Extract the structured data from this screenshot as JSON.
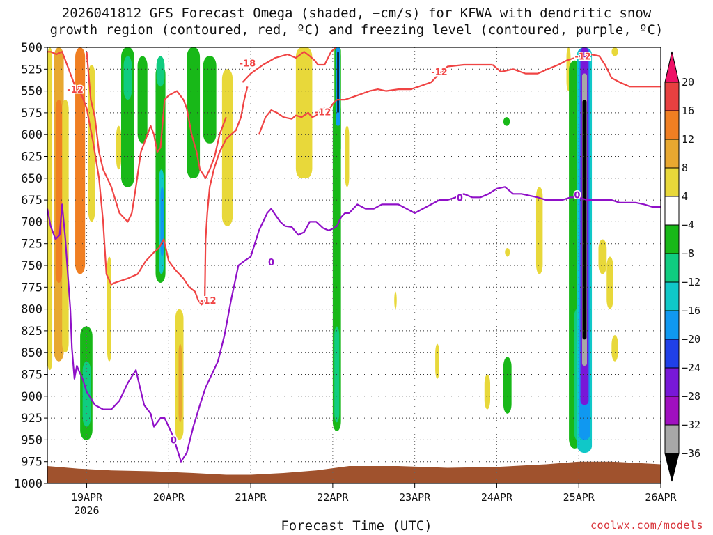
{
  "chart_data": {
    "type": "heatmap",
    "title_line1": "2026041812 GFS Forecast Omega (shaded, −cm/s) for KFWA with dendritic snow",
    "title_line2": "growth region (contoured, red, ºC) and freezing level (contoured, purple, ºC)",
    "xlabel": "Forecast Time (UTC)",
    "credit": "coolwx.com/models",
    "x_ticks": [
      {
        "label": "19APR",
        "sub": "2026",
        "day": 19
      },
      {
        "label": "20APR",
        "sub": "",
        "day": 20
      },
      {
        "label": "21APR",
        "sub": "",
        "day": 21
      },
      {
        "label": "22APR",
        "sub": "",
        "day": 22
      },
      {
        "label": "23APR",
        "sub": "",
        "day": 23
      },
      {
        "label": "24APR",
        "sub": "",
        "day": 24
      },
      {
        "label": "25APR",
        "sub": "",
        "day": 25
      },
      {
        "label": "26APR",
        "sub": "",
        "day": 26
      }
    ],
    "xlim_days": [
      18.52,
      26.0
    ],
    "y_ticks": [
      500,
      525,
      550,
      575,
      600,
      625,
      650,
      675,
      700,
      725,
      750,
      775,
      800,
      825,
      850,
      875,
      900,
      925,
      950,
      975,
      1000
    ],
    "ylim_hpa": [
      500,
      1000
    ],
    "colorbar": {
      "labels": [
        "20",
        "16",
        "12",
        "8",
        "4",
        "−4",
        "−8",
        "−12",
        "−16",
        "−20",
        "−24",
        "−28",
        "−32",
        "−36"
      ],
      "colors": [
        "#ee1166",
        "#e84040",
        "#f07f22",
        "#e8a830",
        "#e8d83a",
        "#ffffff",
        "#18b818",
        "#10cc80",
        "#10c8c8",
        "#1098f0",
        "#2040e8",
        "#7818d8",
        "#a010c0",
        "#a8a8a8",
        "#000000"
      ]
    },
    "colors": {
      "c_pos4": "#e8d83a",
      "c_pos8": "#e8a830",
      "c_pos12": "#f07f22",
      "c_m4": "#18b818",
      "c_m8": "#10cc80",
      "c_m12": "#10c8c8",
      "c_m16": "#1098f0",
      "c_m20": "#2040e8",
      "c_m28": "#7818d8",
      "c_m32": "#a010c0",
      "c_m36": "#a8a8a8",
      "c_black": "#000000",
      "ground": "#a0522d",
      "dgz_line": "#f04444",
      "fz_line": "#9010c8"
    },
    "omega_blobs": [
      {
        "c": "c_pos4",
        "t0": 18.52,
        "t1": 18.58,
        "p0": 500,
        "p1": 870
      },
      {
        "c": "c_pos8",
        "t0": 18.6,
        "t1": 18.72,
        "p0": 500,
        "p1": 860
      },
      {
        "c": "c_pos4",
        "t0": 18.7,
        "t1": 18.78,
        "p0": 560,
        "p1": 850
      },
      {
        "c": "c_pos12",
        "t0": 18.62,
        "t1": 18.7,
        "p0": 560,
        "p1": 770
      },
      {
        "c": "c_pos12",
        "t0": 18.86,
        "t1": 18.98,
        "p0": 500,
        "p1": 760
      },
      {
        "c": "c_pos4",
        "t0": 19.02,
        "t1": 19.1,
        "p0": 520,
        "p1": 700
      },
      {
        "c": "c_pos4",
        "t0": 19.25,
        "t1": 19.3,
        "p0": 740,
        "p1": 860
      },
      {
        "c": "c_m4",
        "t0": 18.92,
        "t1": 19.07,
        "p0": 820,
        "p1": 950
      },
      {
        "c": "c_m8",
        "t0": 18.95,
        "t1": 19.05,
        "p0": 860,
        "p1": 935
      },
      {
        "c": "c_m4",
        "t0": 19.42,
        "t1": 19.58,
        "p0": 500,
        "p1": 660
      },
      {
        "c": "c_m8",
        "t0": 19.45,
        "t1": 19.55,
        "p0": 510,
        "p1": 560
      },
      {
        "c": "c_pos4",
        "t0": 19.36,
        "t1": 19.42,
        "p0": 590,
        "p1": 640
      },
      {
        "c": "c_m4",
        "t0": 19.62,
        "t1": 19.74,
        "p0": 510,
        "p1": 610
      },
      {
        "c": "c_m4",
        "t0": 19.84,
        "t1": 19.96,
        "p0": 520,
        "p1": 770
      },
      {
        "c": "c_m8",
        "t0": 19.85,
        "t1": 19.95,
        "p0": 510,
        "p1": 545
      },
      {
        "c": "c_m12",
        "t0": 19.88,
        "t1": 19.94,
        "p0": 640,
        "p1": 760
      },
      {
        "c": "c_m16",
        "t0": 19.9,
        "t1": 19.94,
        "p0": 660,
        "p1": 740
      },
      {
        "c": "c_pos4",
        "t0": 20.08,
        "t1": 20.18,
        "p0": 800,
        "p1": 950
      },
      {
        "c": "c_pos8",
        "t0": 20.12,
        "t1": 20.16,
        "p0": 840,
        "p1": 930
      },
      {
        "c": "c_m4",
        "t0": 20.22,
        "t1": 20.38,
        "p0": 500,
        "p1": 650
      },
      {
        "c": "c_m4",
        "t0": 20.42,
        "t1": 20.58,
        "p0": 510,
        "p1": 610
      },
      {
        "c": "c_pos4",
        "t0": 20.65,
        "t1": 20.78,
        "p0": 525,
        "p1": 705
      },
      {
        "c": "c_pos4",
        "t0": 20.7,
        "t1": 20.74,
        "p0": 605,
        "p1": 650
      },
      {
        "c": "c_pos4",
        "t0": 21.55,
        "t1": 21.75,
        "p0": 500,
        "p1": 650
      },
      {
        "c": "c_m4",
        "t0": 22.0,
        "t1": 22.1,
        "p0": 560,
        "p1": 940
      },
      {
        "c": "c_m8",
        "t0": 22.02,
        "t1": 22.08,
        "p0": 820,
        "p1": 930
      },
      {
        "c": "c_m4",
        "t0": 22.06,
        "t1": 22.1,
        "p0": 500,
        "p1": 560
      },
      {
        "c": "c_pos4",
        "t0": 22.15,
        "t1": 22.2,
        "p0": 590,
        "p1": 660
      },
      {
        "c": "c_m4",
        "t0": 24.08,
        "t1": 24.16,
        "p0": 580,
        "p1": 590
      },
      {
        "c": "c_pos4",
        "t0": 24.1,
        "t1": 24.16,
        "p0": 730,
        "p1": 740
      },
      {
        "c": "c_m4",
        "t0": 24.08,
        "t1": 24.18,
        "p0": 855,
        "p1": 920
      },
      {
        "c": "c_pos4",
        "t0": 23.85,
        "t1": 23.92,
        "p0": 875,
        "p1": 915
      },
      {
        "c": "c_pos4",
        "t0": 23.25,
        "t1": 23.3,
        "p0": 840,
        "p1": 880
      },
      {
        "c": "c_pos4",
        "t0": 22.75,
        "t1": 22.78,
        "p0": 780,
        "p1": 800
      },
      {
        "c": "c_pos4",
        "t0": 24.48,
        "t1": 24.56,
        "p0": 660,
        "p1": 760
      },
      {
        "c": "c_pos4",
        "t0": 24.85,
        "t1": 24.9,
        "p0": 500,
        "p1": 550
      },
      {
        "c": "c_m4",
        "t0": 24.88,
        "t1": 25.02,
        "p0": 515,
        "p1": 960
      },
      {
        "c": "c_m8",
        "t0": 24.94,
        "t1": 25.02,
        "p0": 800,
        "p1": 950
      },
      {
        "c": "c_pos4",
        "t0": 25.24,
        "t1": 25.34,
        "p0": 720,
        "p1": 760
      },
      {
        "c": "c_pos4",
        "t0": 25.34,
        "t1": 25.42,
        "p0": 740,
        "p1": 800
      },
      {
        "c": "c_pos4",
        "t0": 25.4,
        "t1": 25.48,
        "p0": 830,
        "p1": 860
      },
      {
        "c": "c_pos4",
        "t0": 25.4,
        "t1": 25.48,
        "p0": 500,
        "p1": 510
      }
    ],
    "omega_bands": [
      {
        "c": "c_m4",
        "t0": 22.02,
        "t1": 22.1,
        "p0": 500,
        "p1": 620
      },
      {
        "c": "c_m16",
        "t0": 22.04,
        "t1": 22.09,
        "p0": 500,
        "p1": 590
      },
      {
        "c": "c_black",
        "t0": 22.055,
        "t1": 22.075,
        "p0": 505,
        "p1": 575
      },
      {
        "c": "c_m12",
        "t0": 24.98,
        "t1": 25.16,
        "p0": 500,
        "p1": 965
      },
      {
        "c": "c_m16",
        "t0": 25.0,
        "t1": 25.14,
        "p0": 500,
        "p1": 950
      },
      {
        "c": "c_m28",
        "t0": 25.02,
        "t1": 25.12,
        "p0": 500,
        "p1": 910
      },
      {
        "c": "c_m36",
        "t0": 25.04,
        "t1": 25.1,
        "p0": 530,
        "p1": 865
      },
      {
        "c": "c_black",
        "t0": 25.045,
        "t1": 25.095,
        "p0": 560,
        "p1": 835
      }
    ],
    "ground_profile": {
      "t": [
        18.52,
        18.9,
        19.3,
        19.8,
        20.3,
        20.7,
        21.0,
        21.4,
        21.8,
        22.2,
        22.8,
        23.4,
        24.0,
        24.6,
        25.0,
        25.4,
        26.0
      ],
      "hpa": [
        980,
        983,
        985,
        986,
        988,
        990,
        990,
        988,
        985,
        980,
        980,
        982,
        981,
        978,
        975,
        975,
        978
      ]
    },
    "contours": [
      {
        "kind": "dgz",
        "t": [
          18.52,
          18.56,
          18.63,
          18.7,
          18.76,
          18.86,
          18.94,
          19.0,
          19.08,
          19.15,
          19.2,
          19.24,
          19.3,
          19.34
        ],
        "hpa": [
          505,
          505,
          508,
          505,
          520,
          545,
          555,
          570,
          610,
          650,
          700,
          760,
          772,
          770
        ]
      },
      {
        "kind": "dgz",
        "t": [
          19.34,
          19.5,
          19.62,
          19.72,
          19.82,
          19.88,
          19.94,
          20.0,
          20.08,
          20.18,
          20.25,
          20.32,
          20.36,
          20.4,
          20.44,
          20.45
        ],
        "hpa": [
          770,
          765,
          760,
          745,
          735,
          730,
          720,
          745,
          755,
          765,
          775,
          780,
          790,
          795,
          790,
          720
        ]
      },
      {
        "kind": "dgz",
        "t": [
          20.45,
          20.47,
          20.5,
          20.55,
          20.62,
          20.7,
          20.76,
          20.82,
          20.88,
          20.92,
          20.96
        ],
        "hpa": [
          720,
          690,
          660,
          640,
          620,
          605,
          600,
          595,
          580,
          560,
          545
        ]
      },
      {
        "kind": "dgz",
        "t": [
          19.0,
          19.05,
          19.1,
          19.15,
          19.2,
          19.3,
          19.4,
          19.5,
          19.55,
          19.6,
          19.66,
          19.72,
          19.78,
          19.82,
          19.86,
          19.9,
          19.95,
          20.0,
          20.1,
          20.18,
          20.22,
          20.28,
          20.34,
          20.38,
          20.45,
          20.5,
          20.56,
          20.62,
          20.7
        ],
        "hpa": [
          505,
          560,
          580,
          620,
          640,
          660,
          690,
          700,
          690,
          660,
          620,
          605,
          590,
          600,
          620,
          615,
          560,
          555,
          550,
          560,
          570,
          600,
          620,
          640,
          650,
          640,
          625,
          600,
          580
        ]
      },
      {
        "kind": "dgz",
        "t": [
          21.1,
          21.18,
          21.25,
          21.32,
          21.4,
          21.5,
          21.55,
          21.62,
          21.7,
          21.75,
          21.8,
          21.85,
          21.9,
          21.95,
          22.0,
          22.05
        ],
        "hpa": [
          600,
          580,
          572,
          575,
          580,
          582,
          578,
          580,
          575,
          580,
          578,
          570,
          570,
          572,
          565,
          560
        ]
      },
      {
        "kind": "dgz",
        "t": [
          22.05,
          22.15,
          22.3,
          22.45,
          22.55,
          22.65,
          22.8,
          22.95,
          23.05,
          23.2,
          23.3,
          23.4,
          23.6,
          23.8,
          23.95
        ],
        "hpa": [
          560,
          560,
          555,
          550,
          548,
          550,
          548,
          548,
          545,
          540,
          530,
          522,
          520,
          520,
          520
        ]
      },
      {
        "kind": "dgz",
        "t": [
          23.95,
          24.05,
          24.2,
          24.35,
          24.5,
          24.62,
          24.75,
          24.85,
          24.95,
          25.05,
          25.15,
          25.25,
          25.32,
          25.4,
          25.5,
          25.62,
          25.75,
          25.9,
          26.0
        ],
        "hpa": [
          520,
          528,
          525,
          530,
          530,
          525,
          520,
          515,
          512,
          510,
          508,
          510,
          520,
          535,
          540,
          545,
          545,
          545,
          545
        ]
      },
      {
        "kind": "dgz",
        "t": [
          20.9,
          21.0,
          21.15,
          21.3,
          21.45,
          21.55,
          21.65,
          21.72,
          21.78,
          21.82,
          21.9,
          21.98,
          22.04
        ],
        "hpa": [
          540,
          530,
          520,
          512,
          508,
          512,
          505,
          510,
          515,
          520,
          520,
          505,
          500
        ]
      },
      {
        "kind": "fz",
        "t": [
          18.52,
          18.56,
          18.62,
          18.67,
          18.7,
          18.74,
          18.77,
          18.8,
          18.82,
          18.85,
          18.87,
          18.88,
          18.9,
          18.95,
          19.0,
          19.1,
          19.2,
          19.3,
          19.4,
          19.5,
          19.6,
          19.7,
          19.78,
          19.82,
          19.86,
          19.9,
          19.95,
          20.0,
          20.05,
          20.1,
          20.15,
          20.22,
          20.3,
          20.38,
          20.45,
          20.5,
          20.55,
          20.6,
          20.68,
          20.76,
          20.85,
          20.92,
          21.0,
          21.05,
          21.1,
          21.15,
          21.2,
          21.25,
          21.3,
          21.36,
          21.42,
          21.5,
          21.58,
          21.65,
          21.72,
          21.8,
          21.88,
          21.95,
          22.0,
          22.05,
          22.1,
          22.15,
          22.2,
          22.3,
          22.4,
          22.5,
          22.6,
          22.7,
          22.8,
          22.9,
          23.0,
          23.1,
          23.2,
          23.3,
          23.4,
          23.5,
          23.6,
          23.7,
          23.8,
          23.9,
          24.0,
          24.1,
          24.2,
          24.3,
          24.4,
          24.5,
          24.6,
          24.7,
          24.8,
          24.9,
          25.0,
          25.1,
          25.2,
          25.3,
          25.4,
          25.5,
          25.6,
          25.7,
          25.8,
          25.9,
          26.0
        ],
        "hpa": [
          685,
          705,
          720,
          715,
          680,
          720,
          760,
          800,
          845,
          880,
          870,
          865,
          870,
          880,
          895,
          910,
          915,
          915,
          905,
          885,
          870,
          910,
          920,
          935,
          930,
          925,
          925,
          935,
          945,
          960,
          975,
          965,
          935,
          910,
          890,
          880,
          870,
          860,
          830,
          790,
          750,
          745,
          740,
          725,
          710,
          700,
          690,
          685,
          692,
          700,
          705,
          706,
          715,
          712,
          700,
          700,
          707,
          710,
          708,
          705,
          695,
          690,
          690,
          680,
          685,
          685,
          680,
          680,
          680,
          685,
          690,
          685,
          680,
          675,
          675,
          672,
          668,
          672,
          672,
          668,
          662,
          660,
          668,
          668,
          670,
          672,
          675,
          675,
          675,
          672,
          672,
          675,
          675,
          675,
          675,
          678,
          678,
          678,
          680,
          683,
          683
        ]
      }
    ],
    "contour_labels": [
      {
        "text": "-12",
        "kind": "dgz",
        "t": 18.86,
        "hpa": 548
      },
      {
        "text": "-18",
        "kind": "dgz",
        "t": 20.96,
        "hpa": 518
      },
      {
        "text": "-12",
        "kind": "dgz",
        "t": 21.88,
        "hpa": 574
      },
      {
        "text": "-12",
        "kind": "dgz",
        "t": 23.3,
        "hpa": 528
      },
      {
        "text": "-12",
        "kind": "dgz",
        "t": 25.05,
        "hpa": 510
      },
      {
        "text": "-12",
        "kind": "dgz",
        "t": 20.48,
        "hpa": 790
      },
      {
        "text": "0",
        "kind": "fz",
        "t": 23.55,
        "hpa": 672
      },
      {
        "text": "0",
        "kind": "fz",
        "t": 21.25,
        "hpa": 746
      },
      {
        "text": "0",
        "kind": "fz",
        "t": 20.06,
        "hpa": 950
      },
      {
        "text": "0",
        "kind": "fz",
        "t": 24.98,
        "hpa": 669
      }
    ]
  }
}
